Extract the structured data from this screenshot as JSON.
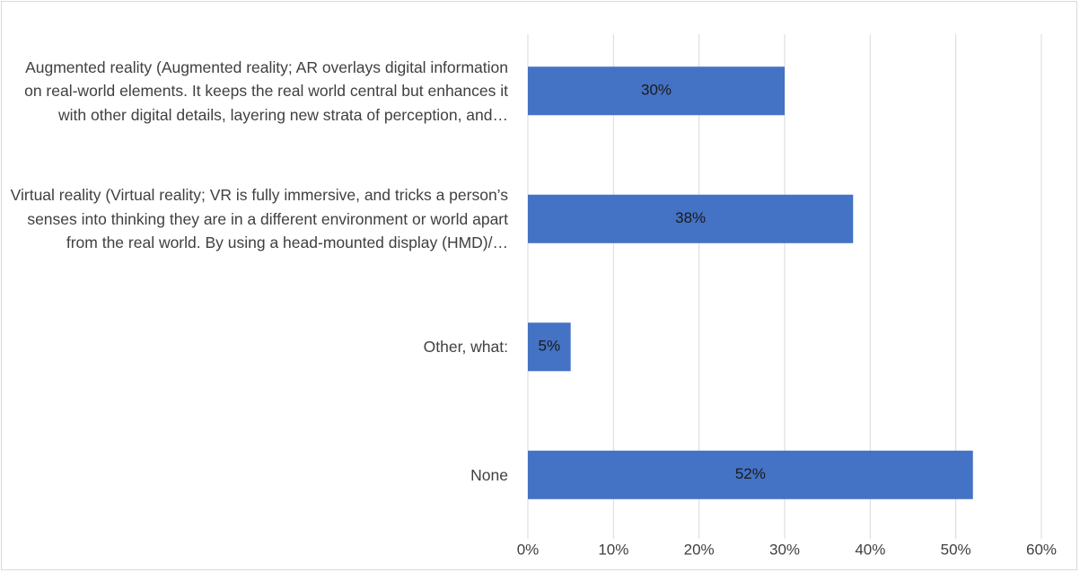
{
  "chart_data": {
    "type": "hbar",
    "categories": [
      "Augmented reality (Augmented reality; AR overlays digital information on real-world elements. It keeps the real world central but enhances it with other digital details, layering new strata of perception, and…",
      "Virtual reality (Virtual reality; VR is fully immersive, and tricks a person’s senses into thinking they are in a different environment or world apart from the real world. By using a head-mounted display (HMD)/…",
      "Other, what:",
      "None"
    ],
    "values": [
      30,
      38,
      5,
      52
    ],
    "value_labels": [
      "30%",
      "38%",
      "5%",
      "52%"
    ],
    "color": "#4472c4",
    "xlim": [
      0,
      60
    ],
    "xticks": [
      {
        "value": 0,
        "label": "0%"
      },
      {
        "value": 10,
        "label": "10%"
      },
      {
        "value": 20,
        "label": "20%"
      },
      {
        "value": 30,
        "label": "30%"
      },
      {
        "value": 40,
        "label": "40%"
      },
      {
        "value": 50,
        "label": "50%"
      },
      {
        "value": 60,
        "label": "60%"
      }
    ],
    "grid": true
  }
}
